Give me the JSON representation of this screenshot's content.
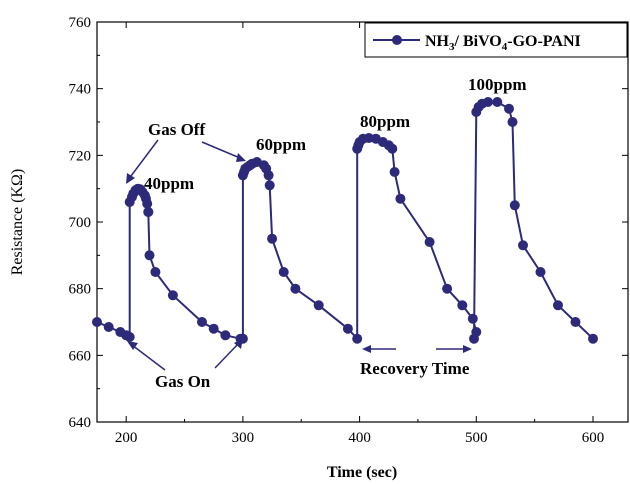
{
  "chart_data": {
    "type": "line",
    "xlabel": "Time (sec)",
    "ylabel": "Resistance (KΩ)",
    "xlim": [
      175,
      630
    ],
    "ylim": [
      640,
      760
    ],
    "xticks": [
      200,
      300,
      400,
      500,
      600
    ],
    "yticks": [
      640,
      660,
      680,
      700,
      720,
      740,
      760
    ],
    "legend_position": "top-right",
    "color": "#2e2a7a",
    "series": [
      {
        "name": "NH3/ BiVO4-GO-PANI",
        "x": [
          175,
          185,
          195,
          200,
          203,
          203,
          205,
          206,
          208,
          210,
          212,
          214,
          216,
          217,
          218,
          219,
          219,
          220,
          225,
          240,
          265,
          275,
          285,
          298,
          300,
          300,
          301,
          302,
          304,
          306,
          308,
          312,
          318,
          320,
          322,
          323,
          325,
          335,
          345,
          365,
          390,
          398,
          398,
          399,
          400,
          403,
          408,
          414,
          420,
          425,
          428,
          430,
          435,
          460,
          475,
          488,
          497,
          500,
          498,
          500,
          502,
          505,
          510,
          518,
          528,
          531,
          533,
          540,
          555,
          570,
          585,
          600
        ],
        "y": [
          670,
          668.5,
          667,
          666,
          665.5,
          706,
          707.5,
          708.5,
          709.5,
          710,
          709.8,
          709,
          708,
          707,
          705.5,
          703,
          703,
          690,
          685,
          678,
          670,
          668,
          666,
          665,
          665,
          714,
          715,
          716,
          716.5,
          717,
          717.5,
          718,
          717,
          716,
          714,
          711,
          695,
          685,
          680,
          675,
          668,
          665,
          722,
          723,
          724,
          725,
          725.2,
          725,
          724,
          723,
          722,
          715,
          707,
          694,
          680,
          675,
          671,
          667,
          665,
          733,
          734.5,
          735.5,
          736,
          736,
          734,
          730,
          705,
          693,
          685,
          675,
          670,
          665
        ],
        "legend_text": "NH",
        "legend_sub_1": "3",
        "legend_mid": "/ BiVO",
        "legend_sub_2": "4",
        "legend_tail": "-GO-PANI"
      }
    ],
    "annotations": {
      "gas_off": "Gas Off",
      "gas_on": "Gas On",
      "recovery_time": "Recovery Time",
      "ppm_40": "40ppm",
      "ppm_60": "60ppm",
      "ppm_80": "80ppm",
      "ppm_100": "100ppm"
    }
  }
}
